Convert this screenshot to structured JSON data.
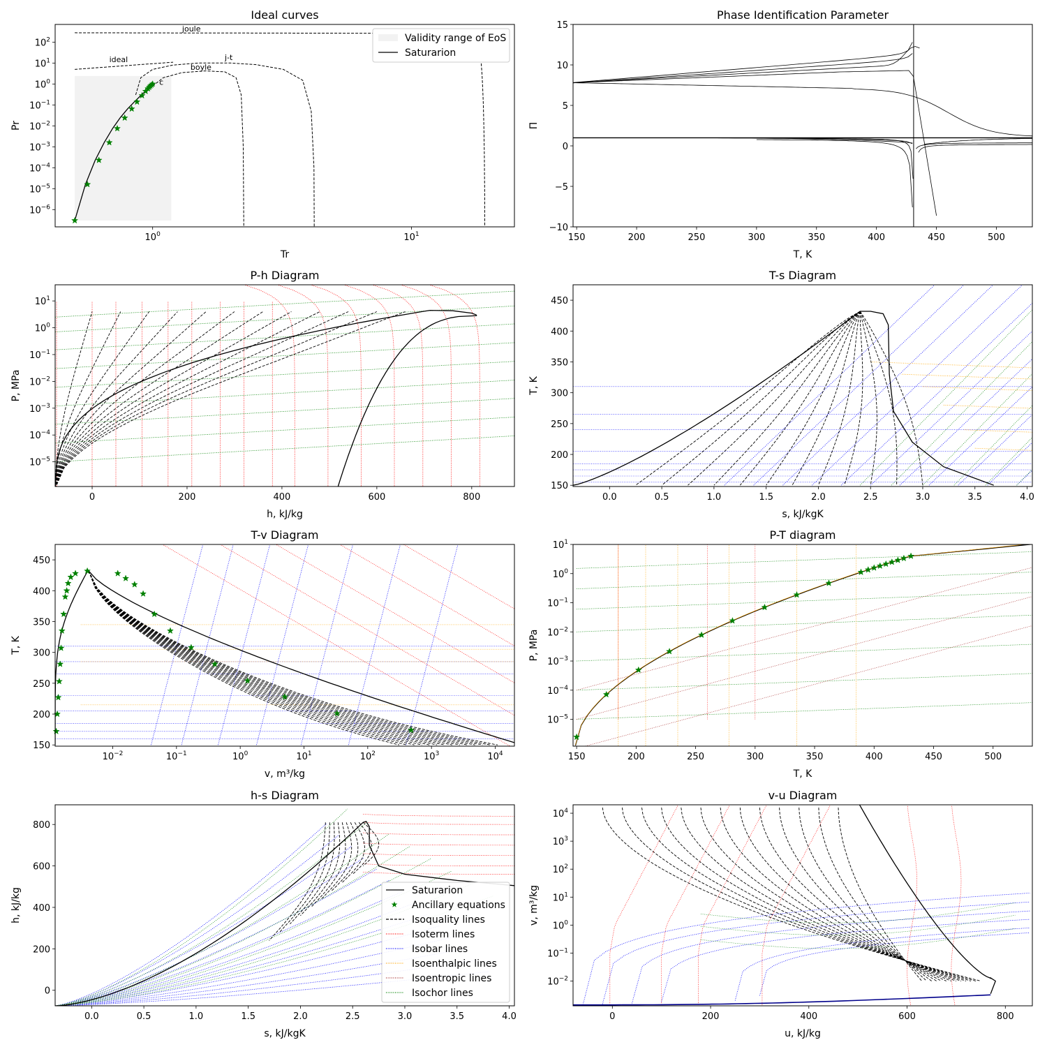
{
  "chart_data": [
    {
      "id": "ideal",
      "type": "line",
      "title": "Ideal curves",
      "xlabel": "Tr",
      "ylabel": "Pr",
      "xscale": "log",
      "yscale": "log",
      "xlim": [
        0.42,
        25
      ],
      "ylim": [
        1.5e-07,
        700
      ],
      "xticks": [
        {
          "v": 1,
          "label": "10",
          "exp": "0"
        },
        {
          "v": 10,
          "label": "10",
          "exp": "1"
        }
      ],
      "yticks": [
        {
          "v": 1e-06,
          "label": "10",
          "exp": "−6"
        },
        {
          "v": 1e-05,
          "label": "10",
          "exp": "−5"
        },
        {
          "v": 0.0001,
          "label": "10",
          "exp": "−4"
        },
        {
          "v": 0.001,
          "label": "10",
          "exp": "−3"
        },
        {
          "v": 0.01,
          "label": "10",
          "exp": "−2"
        },
        {
          "v": 0.1,
          "label": "10",
          "exp": "−1"
        },
        {
          "v": 1,
          "label": "10",
          "exp": "0"
        },
        {
          "v": 10,
          "label": "10",
          "exp": "1"
        },
        {
          "v": 100,
          "label": "10",
          "exp": "2"
        }
      ],
      "validity_range": {
        "x": [
          0.5,
          1.18
        ],
        "y": [
          3e-07,
          2.4
        ]
      },
      "saturation": {
        "x": [
          0.5,
          0.55,
          0.6,
          0.65,
          0.7,
          0.75,
          0.8,
          0.85,
          0.9,
          0.95,
          1.0
        ],
        "y": [
          3e-07,
          1.6e-05,
          0.00023,
          0.0016,
          0.0075,
          0.025,
          0.065,
          0.14,
          0.28,
          0.52,
          1.0
        ]
      },
      "ancillary": {
        "x": [
          0.5,
          0.56,
          0.62,
          0.68,
          0.73,
          0.78,
          0.83,
          0.87,
          0.91,
          0.94,
          0.96,
          0.97,
          0.98,
          0.99,
          1.0
        ],
        "y": [
          3e-07,
          1.6e-05,
          0.00023,
          0.0016,
          0.0075,
          0.024,
          0.065,
          0.14,
          0.28,
          0.45,
          0.6,
          0.7,
          0.8,
          0.9,
          1.0
        ]
      },
      "annotations": [
        {
          "label": "joule",
          "x": 1.3,
          "y": 330
        },
        {
          "label": "ideal",
          "x": 0.68,
          "y": 11
        },
        {
          "label": "j-t",
          "x": 1.9,
          "y": 14
        },
        {
          "label": "boyle",
          "x": 1.4,
          "y": 4.8
        },
        {
          "label": "c",
          "x": 1.06,
          "y": 0.9
        }
      ],
      "legend": {
        "position": "top-right",
        "entries": [
          "Validity range of EoS",
          "Saturarion"
        ]
      }
    },
    {
      "id": "pip",
      "type": "line",
      "title": "Phase Identification Parameter",
      "xlabel": "T, K",
      "ylabel": "Π",
      "xlim": [
        147,
        530
      ],
      "ylim": [
        -10,
        15
      ],
      "xticks": [
        150,
        200,
        250,
        300,
        350,
        400,
        450,
        500
      ],
      "yticks": [
        -10,
        -5,
        0,
        5,
        10,
        15
      ],
      "ytick_labels": [
        "−10",
        "−5",
        "0",
        "5",
        "10",
        "15"
      ],
      "critical_T": 431
    },
    {
      "id": "ph",
      "type": "line",
      "title": "P-h Diagram",
      "xlabel": "h, kJ/kg",
      "ylabel": "P, MPa",
      "yscale": "log",
      "xlim": [
        -78,
        890
      ],
      "ylim": [
        1.2e-06,
        40
      ],
      "xticks": [
        0,
        200,
        400,
        600,
        800
      ],
      "yticks": [
        {
          "v": 1e-05,
          "label": "10",
          "exp": "−5"
        },
        {
          "v": 0.0001,
          "label": "10",
          "exp": "−4"
        },
        {
          "v": 0.001,
          "label": "10",
          "exp": "−3"
        },
        {
          "v": 0.01,
          "label": "10",
          "exp": "−2"
        },
        {
          "v": 0.1,
          "label": "10",
          "exp": "−1"
        },
        {
          "v": 1,
          "label": "10",
          "exp": "0"
        },
        {
          "v": 10,
          "label": "10",
          "exp": "1"
        }
      ]
    },
    {
      "id": "ts",
      "type": "line",
      "title": "T-s Diagram",
      "xlabel": "s, kJ/kgK",
      "ylabel": "T, K",
      "xlim": [
        -0.35,
        4.05
      ],
      "ylim": [
        148,
        475
      ],
      "xticks": [
        0.0,
        0.5,
        1.0,
        1.5,
        2.0,
        2.5,
        3.0,
        3.5,
        4.0
      ],
      "xtick_labels": [
        "0.0",
        "0.5",
        "1.0",
        "1.5",
        "2.0",
        "2.5",
        "3.0",
        "3.5",
        "4.0"
      ],
      "yticks": [
        150,
        200,
        250,
        300,
        350,
        400,
        450
      ]
    },
    {
      "id": "tv",
      "type": "line",
      "title": "T-v Diagram",
      "xlabel": "v, m³/kg",
      "ylabel": "T, K",
      "xscale": "log",
      "xlim": [
        0.00125,
        20000
      ],
      "ylim": [
        148,
        475
      ],
      "xticks": [
        {
          "v": 0.01,
          "label": "10",
          "exp": "−2"
        },
        {
          "v": 0.1,
          "label": "10",
          "exp": "−1"
        },
        {
          "v": 1,
          "label": "10",
          "exp": "0"
        },
        {
          "v": 10,
          "label": "10",
          "exp": "1"
        },
        {
          "v": 100,
          "label": "10",
          "exp": "2"
        },
        {
          "v": 1000,
          "label": "10",
          "exp": "3"
        },
        {
          "v": 10000,
          "label": "10",
          "exp": "4"
        }
      ],
      "yticks": [
        150,
        200,
        250,
        300,
        350,
        400,
        450
      ]
    },
    {
      "id": "pt",
      "type": "line",
      "title": "P-T diagram",
      "xlabel": "T, K",
      "ylabel": "P, MPa",
      "yscale": "log",
      "xlim": [
        147,
        533
      ],
      "ylim": [
        1.2e-06,
        10
      ],
      "xticks": [
        150,
        200,
        250,
        300,
        350,
        400,
        450,
        500
      ],
      "yticks": [
        {
          "v": 1e-05,
          "label": "10",
          "exp": "−5"
        },
        {
          "v": 0.0001,
          "label": "10",
          "exp": "−4"
        },
        {
          "v": 0.001,
          "label": "10",
          "exp": "−3"
        },
        {
          "v": 0.01,
          "label": "10",
          "exp": "−2"
        },
        {
          "v": 0.1,
          "label": "10",
          "exp": "−1"
        },
        {
          "v": 1,
          "label": "10",
          "exp": "0"
        },
        {
          "v": 10,
          "label": "10",
          "exp": "1"
        }
      ],
      "ancillary_T": [
        150,
        175,
        202,
        228,
        255,
        281,
        308,
        335,
        362,
        389,
        395,
        400,
        405,
        410,
        415,
        420,
        425,
        431
      ]
    },
    {
      "id": "hs",
      "type": "line",
      "title": "h-s Diagram",
      "xlabel": "s, kJ/kgK",
      "ylabel": "h, kJ/kg",
      "xlim": [
        -0.35,
        4.05
      ],
      "ylim": [
        -75,
        895
      ],
      "xticks": [
        0.0,
        0.5,
        1.0,
        1.5,
        2.0,
        2.5,
        3.0,
        3.5,
        4.0
      ],
      "xtick_labels": [
        "0.0",
        "0.5",
        "1.0",
        "1.5",
        "2.0",
        "2.5",
        "3.0",
        "3.5",
        "4.0"
      ],
      "yticks": [
        0,
        200,
        400,
        600,
        800
      ],
      "legend": {
        "position": "lower-right",
        "entries": [
          {
            "label": "Saturarion",
            "style": "solid",
            "color": "#000000"
          },
          {
            "label": "Ancillary equations",
            "style": "star",
            "color": "#008000"
          },
          {
            "label": "Isoquality lines",
            "style": "dashed",
            "color": "#000000"
          },
          {
            "label": "Isoterm lines",
            "style": "dotted",
            "color": "#ff0000"
          },
          {
            "label": "Isobar lines",
            "style": "dotted",
            "color": "#0000ff"
          },
          {
            "label": "Isoenthalpic lines",
            "style": "dotted",
            "color": "#ffa500"
          },
          {
            "label": "Isoentropic lines",
            "style": "dotted",
            "color": "#a52a2a"
          },
          {
            "label": "Isochor lines",
            "style": "dotted",
            "color": "#008000"
          }
        ]
      }
    },
    {
      "id": "vu",
      "type": "line",
      "title": "v-u Diagram",
      "xlabel": "u, kJ/kg",
      "ylabel": "v, m³/kg",
      "yscale": "log",
      "xlim": [
        -80,
        855
      ],
      "ylim": [
        0.0013,
        20000
      ],
      "xticks": [
        0,
        200,
        400,
        600,
        800
      ],
      "yticks": [
        {
          "v": 0.01,
          "label": "10",
          "exp": "−2"
        },
        {
          "v": 0.1,
          "label": "10",
          "exp": "−1"
        },
        {
          "v": 1,
          "label": "10",
          "exp": "0"
        },
        {
          "v": 10,
          "label": "10",
          "exp": "1"
        },
        {
          "v": 100,
          "label": "10",
          "exp": "2"
        },
        {
          "v": 1000,
          "label": "10",
          "exp": "3"
        },
        {
          "v": 10000,
          "label": "10",
          "exp": "4"
        }
      ]
    }
  ],
  "colors": {
    "saturation": "#000000",
    "ancillary": "#008000",
    "isotherm": "#ff0000",
    "isobar": "#0000ff",
    "isenthalpic": "#ffa500",
    "isentropic": "#a52a2a",
    "isochor": "#008000",
    "validity_fill": "#f2f2f2"
  }
}
